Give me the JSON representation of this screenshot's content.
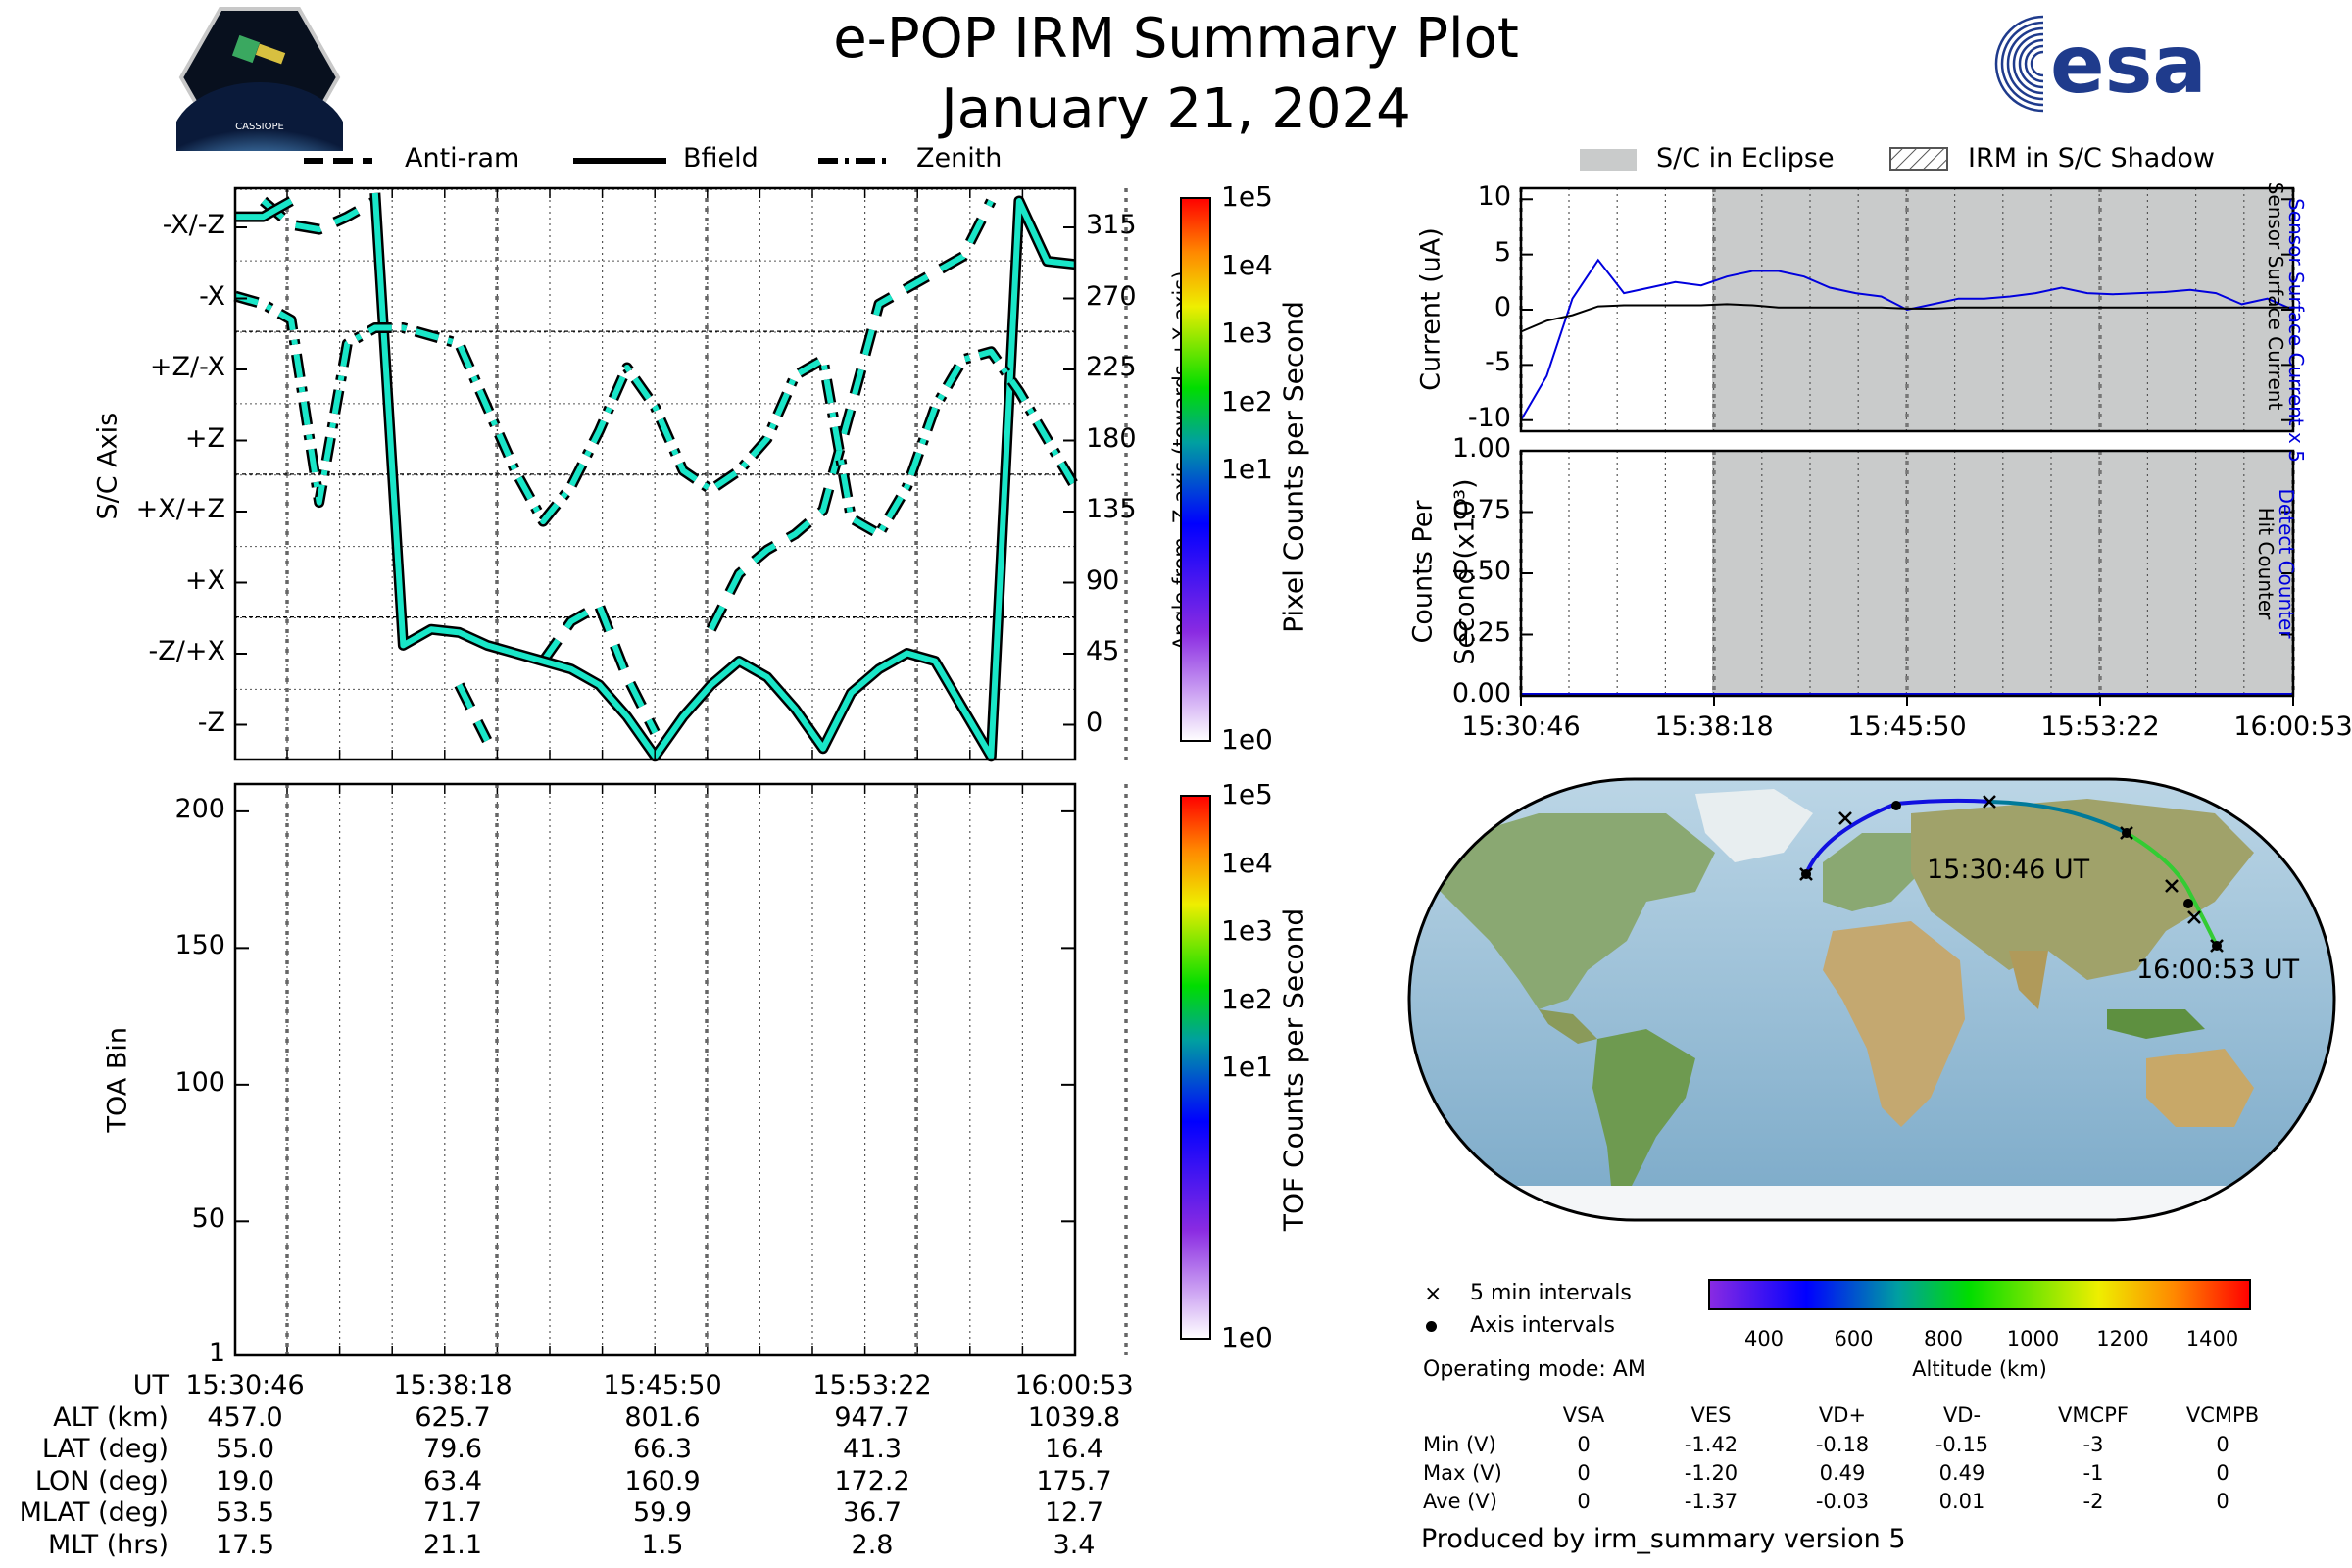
{
  "header": {
    "title": "e-POP IRM Summary Plot",
    "date": "January 21, 2024",
    "logo_left": "CASSIOPE",
    "logo_right": "esa"
  },
  "legend_top_left": [
    "Anti-ram",
    "Bfield",
    "Zenith"
  ],
  "legend_top_right": [
    "S/C in Eclipse",
    "IRM in S/C Shadow"
  ],
  "colors": {
    "trace_fill": "#19e6c8",
    "trace_edge": "#000000",
    "eclipse": "#c9cbcb",
    "detect": "#0000dd"
  },
  "time_labels": [
    "15:30:46",
    "15:38:18",
    "15:45:50",
    "15:53:22",
    "16:00:53"
  ],
  "attitude": {
    "ylabel": "S/C Axis",
    "right_label": "Angle from -Z axis (towards +X axis)",
    "colorbar_label": "Pixel Counts per Second"
  },
  "toa": {
    "ylabel": "TOA Bin",
    "colorbar_label": "TOF Counts per Second"
  },
  "colorbar_ticks": [
    "1e5",
    "1e4",
    "1e3",
    "1e2",
    "1e1",
    "1e0"
  ],
  "current_panel": {
    "ylabel": "Current (uA)",
    "right_label_1": "Sensor Surface Current x 5",
    "right_label_2": "Sensor Surface Current"
  },
  "counts_panel": {
    "ylabel_1": "Counts Per",
    "ylabel_2": "Second (x10³)",
    "right_label_1": "Detect Counter",
    "right_label_2": "Hit Counter"
  },
  "map": {
    "start_label": "15:30:46 UT",
    "end_label": "16:00:53 UT",
    "legend": [
      "5 min intervals",
      "Axis intervals"
    ],
    "operating_mode": "Operating mode: AM",
    "altitude_label": "Altitude (km)",
    "altitude_ticks": [
      "400",
      "600",
      "800",
      "1000",
      "1200",
      "1400"
    ]
  },
  "ephemeris": {
    "rows": [
      {
        "label": "UT",
        "values": [
          "15:30:46",
          "15:38:18",
          "15:45:50",
          "15:53:22",
          "16:00:53"
        ]
      },
      {
        "label": "ALT (km)",
        "values": [
          "457.0",
          "625.7",
          "801.6",
          "947.7",
          "1039.8"
        ]
      },
      {
        "label": "LAT (deg)",
        "values": [
          "55.0",
          "79.6",
          "66.3",
          "41.3",
          "16.4"
        ]
      },
      {
        "label": "LON (deg)",
        "values": [
          "19.0",
          "63.4",
          "160.9",
          "172.2",
          "175.7"
        ]
      },
      {
        "label": "MLAT (deg)",
        "values": [
          "53.5",
          "71.7",
          "59.9",
          "36.7",
          "12.7"
        ]
      },
      {
        "label": "MLT (hrs)",
        "values": [
          "17.5",
          "21.1",
          "1.5",
          "2.8",
          "3.4"
        ]
      }
    ]
  },
  "voltage_table": {
    "columns": [
      "VSA",
      "VES",
      "VD+",
      "VD-",
      "VMCPF",
      "VCMPB"
    ],
    "rows": [
      {
        "label": "Min (V)",
        "values": [
          "0",
          "-1.42",
          "-0.18",
          "-0.15",
          "-3",
          "0"
        ]
      },
      {
        "label": "Max (V)",
        "values": [
          "0",
          "-1.20",
          "0.49",
          "0.49",
          "-1",
          "0"
        ]
      },
      {
        "label": "Ave (V)",
        "values": [
          "0",
          "-1.37",
          "-0.03",
          "0.01",
          "-2",
          "0"
        ]
      }
    ]
  },
  "footer": "Produced by irm_summary version 5",
  "chart_data": [
    {
      "type": "line",
      "title": "",
      "ylabel": "S/C Axis",
      "y_ticks": [
        "-X/-Z",
        "-X",
        "+Z/-X",
        "+Z",
        "+X/+Z",
        "+X",
        "-Z/+X",
        "-Z"
      ],
      "y2_ticks": [
        315,
        270,
        225,
        180,
        135,
        90,
        45,
        0
      ],
      "ylim": [
        -22,
        338
      ],
      "x": [
        0,
        1,
        2,
        3,
        4,
        5,
        6,
        7,
        8,
        9,
        10,
        11,
        12,
        13,
        14,
        15,
        16,
        17,
        18,
        19,
        20,
        21,
        22,
        23,
        24,
        25,
        26,
        27,
        28,
        29,
        30
      ],
      "series": [
        {
          "name": "Anti-ram",
          "values": [
            345,
            330,
            315,
            312,
            320,
            330,
            360,
            null,
            25,
            -10,
            null,
            40,
            65,
            75,
            30,
            -5,
            null,
            60,
            95,
            110,
            120,
            135,
            200,
            265,
            275,
            285,
            295,
            330,
            340,
            350,
            355
          ]
        },
        {
          "name": "Bfield",
          "values": [
            320,
            320,
            330,
            350,
            345,
            335,
            50,
            60,
            58,
            50,
            45,
            40,
            35,
            25,
            5,
            -20,
            5,
            25,
            40,
            30,
            10,
            -15,
            20,
            35,
            45,
            40,
            10,
            -20,
            330,
            292,
            290
          ]
        },
        {
          "name": "Zenith",
          "values": [
            270,
            265,
            255,
            140,
            240,
            250,
            250,
            245,
            240,
            200,
            160,
            128,
            150,
            185,
            225,
            200,
            160,
            148,
            160,
            180,
            220,
            230,
            130,
            120,
            150,
            200,
            230,
            235,
            210,
            180,
            150
          ]
        }
      ]
    },
    {
      "type": "heatmap",
      "ylabel": "TOA Bin",
      "y_ticks": [
        1,
        50,
        100,
        150,
        200
      ],
      "ylim": [
        1,
        210
      ],
      "values": []
    },
    {
      "type": "line",
      "ylabel": "Current (uA)",
      "ylim": [
        -11,
        11
      ],
      "y_ticks": [
        10,
        5,
        0,
        -5,
        -10
      ],
      "x": [
        0,
        1,
        2,
        3,
        4,
        5,
        6,
        7,
        8,
        9,
        10,
        11,
        12,
        13,
        14,
        15,
        16,
        17,
        18,
        19,
        20,
        21,
        22,
        23,
        24,
        25,
        26,
        27,
        28,
        29,
        30
      ],
      "series": [
        {
          "name": "Sensor Surface Current x 5",
          "values": [
            -10,
            -6,
            1,
            4.5,
            1.5,
            2,
            2.5,
            2.2,
            3,
            3.5,
            3.5,
            3,
            2,
            1.5,
            1.2,
            0,
            0.5,
            1,
            1,
            1.2,
            1.5,
            2,
            1.5,
            1.4,
            1.5,
            1.6,
            1.8,
            1.5,
            0.5,
            1,
            0
          ]
        },
        {
          "name": "Sensor Surface Current",
          "values": [
            -2,
            -1,
            -0.5,
            0.3,
            0.4,
            0.4,
            0.4,
            0.4,
            0.5,
            0.4,
            0.2,
            0.2,
            0.2,
            0.2,
            0.2,
            0.1,
            0.1,
            0.2,
            0.2,
            0.2,
            0.2,
            0.2,
            0.2,
            0.2,
            0.2,
            0.2,
            0.2,
            0.2,
            0.2,
            0.2,
            0.2
          ]
        }
      ]
    },
    {
      "type": "line",
      "ylabel": "Counts Per Second (x10³)",
      "ylim": [
        0,
        1
      ],
      "y_ticks": [
        "1.00",
        "0.75",
        "0.50",
        "0.25",
        "0.00"
      ],
      "x": [
        0,
        30
      ],
      "series": [
        {
          "name": "Detect Counter",
          "values": [
            0,
            0
          ]
        },
        {
          "name": "Hit Counter",
          "values": [
            0,
            0
          ]
        }
      ]
    }
  ]
}
